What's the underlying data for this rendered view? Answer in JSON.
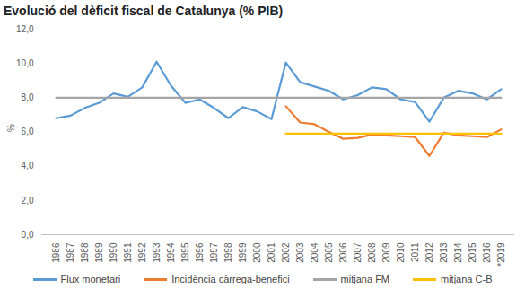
{
  "chart_data": {
    "type": "line",
    "title": "Evolució del dèficit fiscal de Catalunya (% PIB)",
    "y_label": "%",
    "categories": [
      "1986",
      "1987",
      "1988",
      "1989",
      "1990",
      "1991",
      "1992",
      "1993",
      "1994",
      "1995",
      "1996",
      "1997",
      "1998",
      "1999",
      "2000",
      "2001",
      "2002",
      "2003",
      "2004",
      "2005",
      "2006",
      "2007",
      "2008",
      "2009",
      "2010",
      "2011",
      "2012",
      "2013",
      "2014",
      "2015",
      "2016",
      "*2019"
    ],
    "series": [
      {
        "name": "Flux monetari",
        "color": "#5b9bd5",
        "values": [
          6.8,
          6.95,
          7.4,
          7.7,
          8.25,
          8.05,
          8.6,
          10.1,
          8.7,
          7.7,
          7.9,
          7.4,
          6.8,
          7.45,
          7.2,
          6.75,
          10.05,
          8.9,
          8.65,
          8.4,
          7.9,
          8.15,
          8.6,
          8.5,
          7.9,
          7.75,
          6.6,
          8.0,
          8.4,
          8.25,
          7.9,
          8.5
        ]
      },
      {
        "name": "Incidència càrrega-benefici",
        "color": "#ed7d31",
        "values": [
          null,
          null,
          null,
          null,
          null,
          null,
          null,
          null,
          null,
          null,
          null,
          null,
          null,
          null,
          null,
          null,
          7.5,
          6.55,
          6.45,
          6.0,
          5.6,
          5.65,
          5.85,
          5.8,
          5.75,
          5.7,
          4.6,
          5.95,
          5.8,
          5.75,
          5.7,
          6.15
        ]
      },
      {
        "name": "mitjana FM",
        "color": "#a5a5a5",
        "values": [
          8.0,
          8.0,
          8.0,
          8.0,
          8.0,
          8.0,
          8.0,
          8.0,
          8.0,
          8.0,
          8.0,
          8.0,
          8.0,
          8.0,
          8.0,
          8.0,
          8.0,
          8.0,
          8.0,
          8.0,
          8.0,
          8.0,
          8.0,
          8.0,
          8.0,
          8.0,
          8.0,
          8.0,
          8.0,
          8.0,
          8.0,
          8.0
        ]
      },
      {
        "name": "mitjana C-B",
        "color": "#ffc000",
        "values": [
          null,
          null,
          null,
          null,
          null,
          null,
          null,
          null,
          null,
          null,
          null,
          null,
          null,
          null,
          null,
          null,
          5.9,
          5.9,
          5.9,
          5.9,
          5.9,
          5.9,
          5.9,
          5.9,
          5.9,
          5.9,
          5.9,
          5.9,
          5.9,
          5.9,
          5.9,
          5.9
        ]
      }
    ],
    "ylim": [
      0,
      12
    ],
    "yticks": [
      {
        "value": 0,
        "label": "0,0"
      },
      {
        "value": 2,
        "label": "2,0"
      },
      {
        "value": 4,
        "label": "4,0"
      },
      {
        "value": 6,
        "label": "6,0"
      },
      {
        "value": 8,
        "label": "8,0"
      },
      {
        "value": 10,
        "label": "10,0"
      },
      {
        "value": 12,
        "label": "12,0"
      }
    ],
    "grid": false,
    "legend": "bottom"
  }
}
